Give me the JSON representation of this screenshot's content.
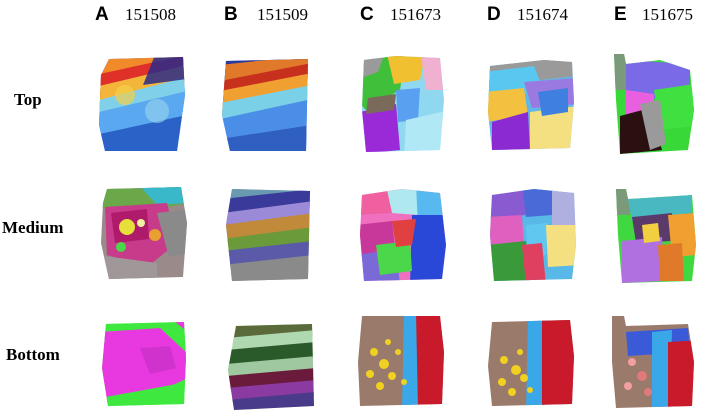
{
  "columns": [
    {
      "letter": "A",
      "id": "151508"
    },
    {
      "letter": "B",
      "id": "151509"
    },
    {
      "letter": "C",
      "id": "151673"
    },
    {
      "letter": "D",
      "id": "151674"
    },
    {
      "letter": "E",
      "id": "151675"
    }
  ],
  "rows": [
    {
      "label": "Top"
    },
    {
      "label": "Medium"
    },
    {
      "label": "Bottom"
    }
  ]
}
